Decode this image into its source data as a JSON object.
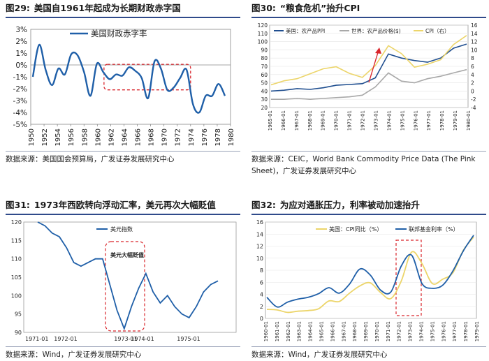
{
  "colors": {
    "blue": "#1f5fa8",
    "darkblue": "#1f4e8f",
    "gray": "#a8a8a8",
    "yellow": "#ecd56a",
    "red": "#d9252b"
  },
  "charts": [
    {
      "number": "图29:",
      "title": "美国自1961年起成为长期财政赤字国",
      "source": "数据来源：美国国会预算局，广发证券发展研究中心",
      "chart_data": {
        "type": "line",
        "legend": [
          "美国财政赤字率"
        ],
        "x": [
          1950,
          1951,
          1952,
          1953,
          1954,
          1955,
          1956,
          1957,
          1958,
          1959,
          1960,
          1961,
          1962,
          1963,
          1964,
          1965,
          1966,
          1967,
          1968,
          1969,
          1970,
          1971,
          1972,
          1973,
          1974,
          1975,
          1976,
          1977,
          1978,
          1979,
          1980
        ],
        "series": [
          {
            "name": "美国财政赤字率",
            "values": [
              -1.0,
              1.7,
              -0.4,
              -1.7,
              -0.3,
              -0.8,
              0.9,
              0.8,
              -0.6,
              -2.6,
              0.1,
              -0.6,
              -1.2,
              -0.8,
              -0.9,
              -0.2,
              -0.5,
              -1.1,
              -2.8,
              0.3,
              -0.3,
              -2.1,
              -1.9,
              -1.1,
              -0.4,
              -3.3,
              -4.0,
              -2.6,
              -2.6,
              -1.6,
              -2.6
            ]
          }
        ],
        "xticks": [
          "1950",
          "1952",
          "1954",
          "1956",
          "1958",
          "1960",
          "1962",
          "1964",
          "1966",
          "1968",
          "1970",
          "1972",
          "1974",
          "1976",
          "1978",
          "1980"
        ],
        "yticks": [
          "3%",
          "2%",
          "1%",
          "0%",
          "-1%",
          "-2%",
          "-3%",
          "-4%",
          "-5%"
        ],
        "ylim": [
          -5,
          3
        ],
        "annotation": "dashed box 1961-1974"
      }
    },
    {
      "number": "图30:",
      "title": "“粮食危机”抬升CPI",
      "source": "数据来源：CEIC，World Bank Commodity Price Data (The Pink Sheet)，广发证券发展研究中心",
      "chart_data": {
        "type": "line",
        "legend": [
          "美国：农产品PPI",
          "世界：农产品价格($)",
          "CPI（右）"
        ],
        "xticks": [
          "1965-01",
          "1966-01",
          "1967-01",
          "1968-01",
          "1969-01",
          "1970-01",
          "1971-01",
          "1972-01",
          "1973-01",
          "1974-01",
          "1975-01",
          "1976-01",
          "1977-01",
          "1978-01",
          "1979-01",
          "1980-01"
        ],
        "yticks_left": [
          "120",
          "110",
          "100",
          "90",
          "80",
          "70",
          "60",
          "50",
          "40",
          "30",
          "20"
        ],
        "yticks_right": [
          "16",
          "14",
          "12",
          "10",
          "8",
          "6",
          "4",
          "2",
          "0",
          "-2",
          "-4"
        ],
        "ylim_left": [
          20,
          120
        ],
        "ylim_right": [
          -4,
          16
        ],
        "series": [
          {
            "name": "美国：农产品PPI",
            "axis": "left",
            "values": [
              40,
              41,
              43,
              42,
              44,
              47,
              48,
              49,
              56,
              85,
              80,
              77,
              75,
              80,
              92,
              97
            ]
          },
          {
            "name": "世界：农产品价格($)",
            "axis": "left",
            "values": [
              30,
              30,
              31,
              30,
              31,
              32,
              33,
              35,
              45,
              62,
              52,
              50,
              55,
              58,
              62,
              66
            ]
          },
          {
            "name": "CPI（右）",
            "axis": "right",
            "values": [
              1.5,
              2.5,
              3.0,
              4.2,
              5.4,
              5.9,
              4.3,
              3.3,
              6.2,
              11.0,
              9.1,
              5.8,
              6.5,
              7.6,
              11.3,
              13.5
            ]
          }
        ]
      }
    },
    {
      "number": "图31:",
      "title": "1973年西欧转向浮动汇率，美元再次大幅贬值",
      "source": "数据来源：Wind，广发证券发展研究中心",
      "chart_data": {
        "type": "line",
        "legend": [
          "美元指数"
        ],
        "annotation": "美元大幅贬值",
        "xticks": [
          "1971-01",
          "1972-01",
          "1973-01",
          "1974-01",
          "1975-01"
        ],
        "yticks": [
          "120",
          "115",
          "110",
          "105",
          "100",
          "95",
          "90"
        ],
        "ylim": [
          90,
          120
        ],
        "series": [
          {
            "name": "美元指数",
            "values": [
              120,
              119,
              117,
              116,
              113,
              109,
              108,
              109,
              110,
              110,
              103,
              96,
              91,
              97,
              102,
              106,
              101,
              98,
              100,
              97,
              95,
              94,
              97,
              101,
              103,
              104
            ]
          }
        ]
      }
    },
    {
      "number": "图32:",
      "title": "为应对通胀压力，利率被动加速抬升",
      "source": "数据来源：Wind，广发证券发展研究中心",
      "chart_data": {
        "type": "line",
        "legend": [
          "美国：CPI同比（%）",
          "联邦基金利率（%）"
        ],
        "xticks": [
          "1960-01",
          "1961-01",
          "1962-01",
          "1963-01",
          "1964-01",
          "1965-01",
          "1966-01",
          "1967-01",
          "1968-01",
          "1969-01",
          "1970-01",
          "1971-01",
          "1972-01",
          "1973-01",
          "1974-01",
          "1975-01",
          "1976-01",
          "1977-01",
          "1978-01",
          "1979-01"
        ],
        "yticks": [
          "16",
          "14",
          "12",
          "10",
          "8",
          "6",
          "4",
          "2",
          "0"
        ],
        "ylim": [
          0,
          16
        ],
        "series": [
          {
            "name": "美国：CPI同比（%）",
            "values": [
              1.5,
              1.4,
              1.0,
              1.2,
              1.3,
              1.6,
              2.9,
              2.8,
              4.2,
              5.4,
              5.9,
              4.3,
              3.3,
              6.2,
              11.0,
              9.1,
              5.8,
              6.5,
              7.6,
              11.3,
              13.5
            ]
          },
          {
            "name": "联邦基金利率（%）",
            "values": [
              3.5,
              1.9,
              2.7,
              3.2,
              3.5,
              4.1,
              5.1,
              4.2,
              5.7,
              8.2,
              7.2,
              4.7,
              4.4,
              8.7,
              10.5,
              5.8,
              5.0,
              5.5,
              7.9,
              11.2,
              13.8
            ]
          }
        ]
      }
    }
  ]
}
